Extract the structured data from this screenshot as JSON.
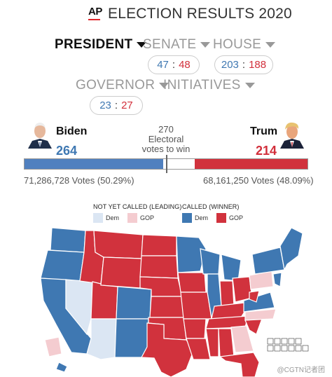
{
  "header": {
    "logo_text": "AP",
    "title": "ELECTION RESULTS 2020"
  },
  "tabs": {
    "president": "PRESIDENT",
    "senate": "SENATE",
    "house": "HOUSE",
    "governor": "GOVERNOR",
    "initiatives": "INITIATIVES"
  },
  "counts": {
    "senate": {
      "dem": "47",
      "gop": "48"
    },
    "house": {
      "dem": "203",
      "gop": "188"
    },
    "governor": {
      "dem": "23",
      "gop": "27"
    }
  },
  "candidates": {
    "dem": {
      "name": "Biden",
      "electoral": "264",
      "popular": "71,286,728 Votes (50.29%)"
    },
    "gop": {
      "name": "Trump",
      "electoral": "214",
      "popular": "68,161,250 Votes (48.09%)"
    }
  },
  "electoral_bar": {
    "threshold": "270",
    "threshold_line1": "Electoral",
    "threshold_line2": "votes to win",
    "dem_fraction": 0.4907,
    "gop_fraction": 0.3978
  },
  "legend": {
    "not_called_title": "NOT YET CALLED (LEADING)",
    "called_title": "CALLED (WINNER)",
    "dem_label": "Dem",
    "gop_label": "GOP"
  },
  "colors": {
    "dem_called": "#3f78b2",
    "gop_called": "#d1323d",
    "dem_leading": "#dbe6f3",
    "gop_leading": "#f4ccd0",
    "accent_red": "#e0262b"
  },
  "icons": {
    "tab_dropdown": "triangle-down-icon",
    "biden": "biden-portrait-icon",
    "trump": "trump-portrait-icon"
  },
  "watermark": "@CGTN记者团"
}
